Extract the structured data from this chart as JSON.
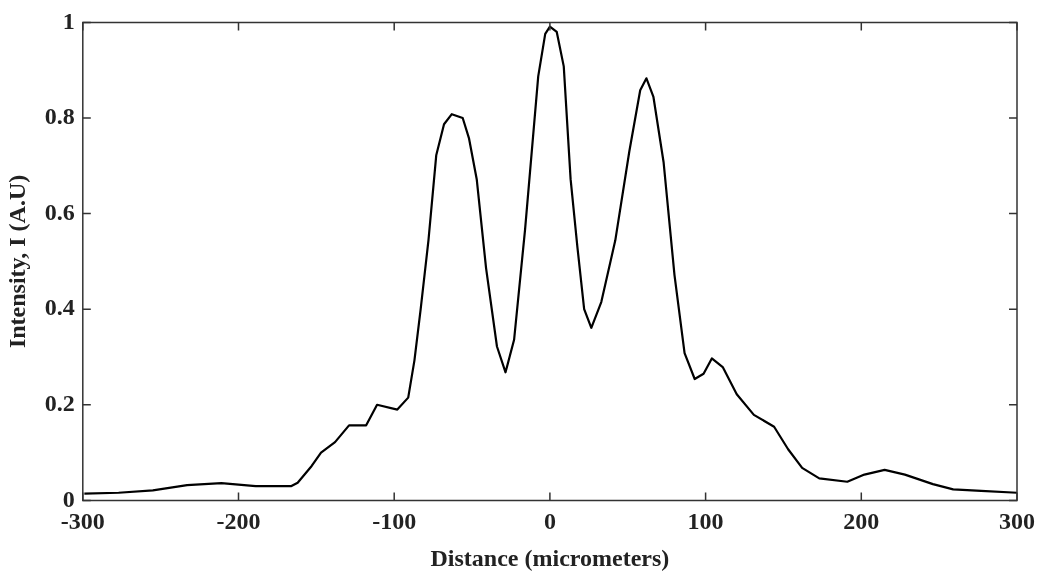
{
  "chart_data": {
    "type": "line",
    "xlabel": "Distance (micrometers)",
    "ylabel": "Intensity, I (A.U)",
    "xlim": [
      -300,
      300
    ],
    "xticks": [
      -300,
      -200,
      -100,
      0,
      100,
      200,
      300
    ],
    "ylim": [
      0,
      1
    ],
    "yticks": [
      0,
      0.2,
      0.4,
      0.6,
      0.8,
      1
    ],
    "grid": false,
    "legend": false,
    "marker": "none",
    "line_style": "solid",
    "series": [
      {
        "color": "#000000",
        "x": [
          -299,
          -277,
          -255,
          -233,
          -211,
          -189,
          -166,
          -162,
          -153,
          -147,
          -138,
          -129,
          -118,
          -111,
          -98,
          -91,
          -87,
          -83,
          -78,
          -73,
          -68,
          -63,
          -56,
          -52,
          -47,
          -41,
          -34,
          -28.5,
          -23,
          -16,
          -7.5,
          -3,
          0,
          4.4,
          8.9,
          13.3,
          17.7,
          22,
          26.6,
          33,
          42,
          51,
          58,
          62,
          66.5,
          73,
          80,
          86.5,
          93,
          98.7,
          104,
          111,
          120,
          131,
          144,
          153,
          162,
          173,
          191,
          202,
          215,
          228,
          246,
          259,
          277,
          300
        ],
        "values": [
          0.014,
          0.016,
          0.021,
          0.032,
          0.036,
          0.03,
          0.03,
          0.037,
          0.072,
          0.1,
          0.122,
          0.157,
          0.157,
          0.2,
          0.19,
          0.215,
          0.293,
          0.4,
          0.544,
          0.722,
          0.787,
          0.808,
          0.8,
          0.758,
          0.672,
          0.486,
          0.322,
          0.268,
          0.336,
          0.565,
          0.887,
          0.976,
          0.991,
          0.98,
          0.908,
          0.672,
          0.529,
          0.4,
          0.361,
          0.415,
          0.544,
          0.73,
          0.858,
          0.883,
          0.844,
          0.708,
          0.472,
          0.308,
          0.254,
          0.265,
          0.297,
          0.279,
          0.222,
          0.179,
          0.154,
          0.107,
          0.068,
          0.046,
          0.039,
          0.054,
          0.064,
          0.054,
          0.034,
          0.023,
          0.02,
          0.016
        ]
      }
    ]
  }
}
